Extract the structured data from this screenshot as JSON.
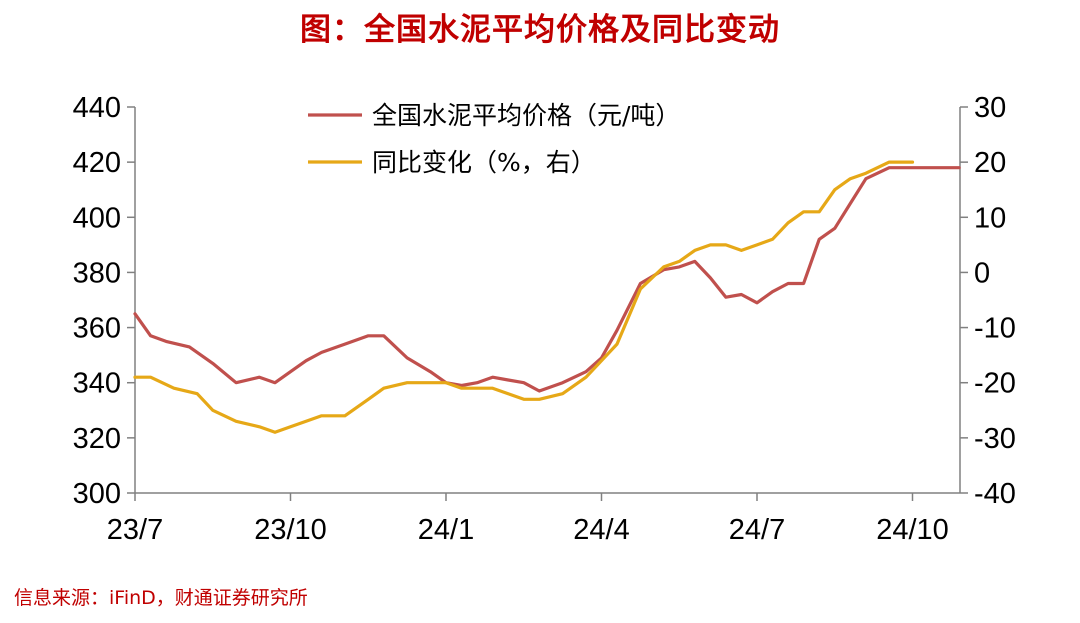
{
  "title": "图：全国水泥平均价格及同比变动",
  "source": "信息来源：iFinD，财通证券研究所",
  "colors": {
    "price": "#c0504d",
    "yoy": "#e6a817",
    "title": "#c00000",
    "axis": "#808080"
  },
  "chart_data": {
    "type": "line",
    "legend_position": "top-center",
    "grid": false,
    "x_ticks": [
      "23/7",
      "23/10",
      "24/1",
      "24/4",
      "24/7",
      "24/10"
    ],
    "y_left": {
      "ticks": [
        "440",
        "420",
        "400",
        "380",
        "360",
        "340",
        "320",
        "300"
      ],
      "lim": [
        300,
        440
      ]
    },
    "y_right": {
      "ticks": [
        "30",
        "20",
        "10",
        "0",
        "-10",
        "-20",
        "-30",
        "-40"
      ],
      "lim": [
        -40,
        30
      ]
    },
    "series": [
      {
        "name": "全国水泥平均价格（元/吨）",
        "axis": "left",
        "color": "#c0504d",
        "t": [
          0,
          0.1,
          0.2,
          0.35,
          0.5,
          0.65,
          0.8,
          0.9,
          1.0,
          1.1,
          1.2,
          1.35,
          1.5,
          1.6,
          1.75,
          1.9,
          2.0,
          2.1,
          2.2,
          2.3,
          2.4,
          2.5,
          2.6,
          2.75,
          2.9,
          3.0,
          3.1,
          3.25,
          3.4,
          3.5,
          3.6,
          3.7,
          3.8,
          3.9,
          4.0,
          4.1,
          4.2,
          4.3,
          4.4,
          4.5,
          4.6,
          4.7,
          4.85,
          5.0,
          5.1,
          5.2,
          5.3
        ],
        "values": [
          365,
          357,
          355,
          353,
          347,
          340,
          342,
          340,
          344,
          348,
          351,
          354,
          357,
          357,
          349,
          344,
          340,
          339,
          340,
          342,
          341,
          340,
          337,
          340,
          344,
          349,
          359,
          376,
          381,
          382,
          384,
          378,
          371,
          372,
          369,
          373,
          376,
          376,
          392,
          396,
          405,
          414,
          418,
          418,
          418,
          418,
          418
        ],
        "_note_unused": []
      },
      {
        "name": "同比变化（%，右）",
        "axis": "right",
        "color": "#e6a817",
        "t": [
          0,
          0.1,
          0.25,
          0.4,
          0.5,
          0.65,
          0.8,
          0.9,
          1.0,
          1.1,
          1.2,
          1.35,
          1.5,
          1.6,
          1.75,
          1.9,
          2.0,
          2.1,
          2.2,
          2.3,
          2.4,
          2.5,
          2.6,
          2.75,
          2.9,
          3.0,
          3.1,
          3.25,
          3.4,
          3.5,
          3.6,
          3.7,
          3.8,
          3.9,
          4.0,
          4.1,
          4.2,
          4.3,
          4.4,
          4.5,
          4.6,
          4.7,
          4.85,
          5.0
        ],
        "values": [
          -19,
          -19,
          -21,
          -22,
          -25,
          -27,
          -28,
          -29,
          -28,
          -27,
          -26,
          -26,
          -23,
          -21,
          -20,
          -20,
          -20,
          -21,
          -21,
          -21,
          -22,
          -23,
          -23,
          -22,
          -19,
          -16,
          -13,
          -3,
          1,
          2,
          4,
          5,
          5,
          4,
          5,
          6,
          9,
          11,
          11,
          15,
          17,
          18,
          20,
          20
        ]
      }
    ]
  }
}
